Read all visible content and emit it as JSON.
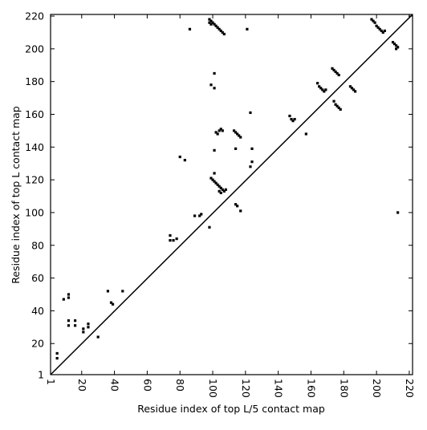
{
  "chart_data": {
    "type": "scatter",
    "xlabel": "Residue index of top L/5 contact map",
    "ylabel": "Residue index of top L contact map",
    "color": "#000000",
    "xlim": [
      1,
      222
    ],
    "ylim": [
      1,
      221
    ],
    "xticks": [
      1,
      20,
      40,
      60,
      80,
      100,
      120,
      140,
      160,
      180,
      200,
      220
    ],
    "yticks": [
      1,
      20,
      40,
      60,
      80,
      100,
      120,
      140,
      160,
      180,
      200,
      220
    ],
    "x": [
      5,
      5,
      9,
      12,
      12,
      12,
      12,
      16,
      16,
      21,
      21,
      24,
      24,
      30,
      36,
      38,
      39,
      45,
      74,
      74,
      76,
      78,
      80,
      83,
      86,
      89,
      92,
      93,
      98,
      99,
      101,
      101,
      98,
      99,
      100,
      101,
      102,
      103,
      104,
      105,
      106,
      107,
      98,
      99,
      101,
      101,
      99,
      100,
      101,
      102,
      103,
      104,
      105,
      106,
      107,
      104,
      105,
      108,
      102,
      103,
      104,
      105,
      106,
      113,
      114,
      115,
      116,
      117,
      114,
      114,
      115,
      117,
      121,
      123,
      124,
      124,
      123,
      147,
      148,
      149,
      150,
      157,
      164,
      165,
      166,
      167,
      168,
      169,
      173,
      174,
      175,
      176,
      177,
      174,
      175,
      176,
      177,
      178,
      184,
      185,
      186,
      187,
      197,
      198,
      199,
      200,
      201,
      202,
      203,
      204,
      205,
      210,
      211,
      212,
      213,
      212,
      213
    ],
    "y": [
      14,
      11,
      47,
      48,
      50,
      34,
      31,
      34,
      31,
      29,
      27,
      32,
      30,
      24,
      52,
      45,
      44,
      52,
      86,
      83,
      83,
      84,
      134,
      132,
      212,
      98,
      98,
      99,
      91,
      178,
      185,
      176,
      218,
      217,
      216,
      215,
      214,
      213,
      212,
      211,
      210,
      209,
      216,
      215,
      138,
      124,
      121,
      120,
      119,
      118,
      117,
      116,
      115,
      114,
      113,
      113,
      112,
      114,
      149,
      148,
      150,
      151,
      150,
      150,
      149,
      148,
      147,
      146,
      139,
      105,
      104,
      101,
      212,
      161,
      139,
      131,
      128,
      159,
      157,
      156,
      157,
      148,
      179,
      177,
      176,
      175,
      174,
      175,
      188,
      187,
      186,
      185,
      184,
      168,
      166,
      165,
      164,
      163,
      177,
      176,
      175,
      174,
      218,
      217,
      216,
      214,
      213,
      212,
      211,
      210,
      211,
      204,
      203,
      202,
      201,
      200,
      100
    ]
  }
}
